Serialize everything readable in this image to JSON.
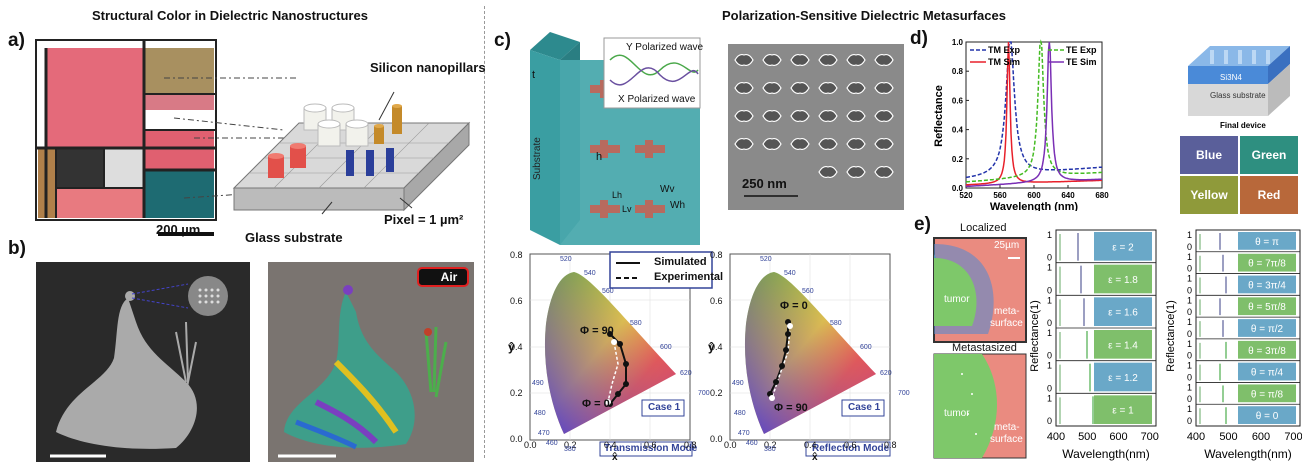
{
  "left_title": "Structural Color in Dielectric Nanostructures",
  "right_title": "Polarization-Sensitive Dielectric Metasurfaces",
  "panels": {
    "a": {
      "label": "a)",
      "scale": "200 µm",
      "nanopillars": "Silicon nanopillars",
      "glass": "Glass substrate",
      "pixel": "Pixel = 1 µm²"
    },
    "b": {
      "label": "b)",
      "air": "Air"
    },
    "c": {
      "label": "c)",
      "y_wave": "Y Polarized wave",
      "x_wave": "X Polarized wave",
      "substrate": "Substrate",
      "t": "t",
      "h": "h",
      "wv": "Wv",
      "wh": "Wh",
      "lh": "Lh",
      "lv": "Lv",
      "sem_scale": "250 nm",
      "legend_sim": "Simulated",
      "legend_exp": "Experimental",
      "phi90": "Φ = 90",
      "phi0": "Φ = 0",
      "case": "Case 1",
      "trans": "Transmission Mode",
      "refl": "Reflection Mode",
      "ylabel": "ŷ",
      "xlabel": "x̂",
      "xticks": [
        "0.0",
        "0.2",
        "0.4",
        "0.6",
        "0.8"
      ],
      "yticks": [
        "0.0",
        "0.2",
        "0.4",
        "0.6",
        "0.8"
      ],
      "wl_labels": [
        "520",
        "540",
        "560",
        "580",
        "600",
        "620",
        "700",
        "490",
        "480",
        "470",
        "460",
        "380"
      ]
    },
    "d": {
      "label": "d)",
      "ylabel": "Reflectance",
      "xlabel": "Wavelength (nm)",
      "xticks": [
        "520",
        "560",
        "600",
        "640",
        "680"
      ],
      "yticks": [
        "0.0",
        "0.2",
        "0.4",
        "0.6",
        "0.8",
        "1.0"
      ],
      "legend": [
        "TM Exp",
        "TM Sim",
        "TE Exp",
        "TE Sim"
      ],
      "device_chip": "Si3N4",
      "device_glass": "Glass substrate",
      "device_caption": "Final device",
      "swatches": [
        "Blue",
        "Green",
        "Yellow",
        "Red"
      ]
    },
    "e": {
      "label": "e)",
      "localized": "Localized",
      "metastasized": "Metastasized",
      "scale": "25µm",
      "tumor": "tumor",
      "meta1": "meta-",
      "meta2": "surface",
      "ylabel": "Reflectance(1)",
      "xlabel": "Wavelength(nm)",
      "xticks": [
        "400",
        "500",
        "600",
        "700"
      ],
      "eps": [
        "ε = 2",
        "ε = 1.8",
        "ε = 1.6",
        "ε = 1.4",
        "ε = 1.2",
        "ε = 1"
      ],
      "theta": [
        "θ = π",
        "θ = 7π/8",
        "θ = 3π/4",
        "θ = 5π/8",
        "θ = π/2",
        "θ = 3π/8",
        "θ = π/4",
        "θ = π/8",
        "θ = 0"
      ]
    }
  },
  "colors": {
    "tm": "#e8202a",
    "te": "#44bb22",
    "te_sim": "#7a2fb5",
    "tm_exp": "#2233aa",
    "blue_sw": "#5a5f9a",
    "green_sw": "#2e8f80",
    "yellow_sw": "#8f9a3a",
    "red_sw": "#b8683a"
  },
  "chart_data": {
    "type": "line",
    "title": "",
    "xlabel": "Wavelength (nm)",
    "ylabel": "Reflectance",
    "xlim": [
      520,
      680
    ],
    "ylim": [
      0,
      1.0
    ],
    "series": [
      {
        "name": "TM Exp",
        "peak": 572,
        "peak_value": 1.0
      },
      {
        "name": "TM Sim",
        "peak": 570,
        "peak_value": 1.0
      },
      {
        "name": "TE Exp",
        "peak": 608,
        "peak_value": 1.0
      },
      {
        "name": "TE Sim",
        "peak": 618,
        "peak_value": 1.0
      }
    ]
  }
}
